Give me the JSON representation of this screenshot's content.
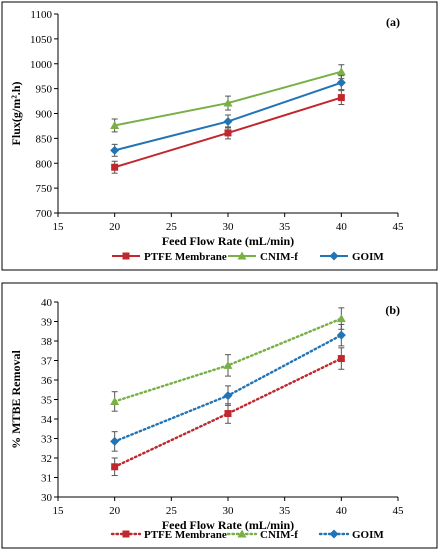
{
  "chart_data": [
    {
      "panel_label": "(a)",
      "type": "line",
      "xlabel": "Feed Flow Rate (mL/min)",
      "ylabel": "Flux(g/m².h)",
      "xlim": [
        15,
        45
      ],
      "ylim": [
        700,
        1100
      ],
      "x_ticks": [
        "15",
        "20",
        "25",
        "30",
        "35",
        "40",
        "45"
      ],
      "y_ticks": [
        "700",
        "750",
        "800",
        "850",
        "900",
        "950",
        "1000",
        "1050",
        "1100"
      ],
      "legend_position": "bottom",
      "grid": false,
      "x": [
        20,
        30,
        40
      ],
      "series": [
        {
          "name": "PTFE Membrane",
          "values": [
            792,
            861,
            932
          ],
          "errors": [
            12,
            12,
            14
          ],
          "color": "#c0282d",
          "marker": "square",
          "line": "solid"
        },
        {
          "name": "CNIM-f",
          "values": [
            876,
            921,
            984
          ],
          "errors": [
            13,
            14,
            14
          ],
          "color": "#78b045",
          "marker": "triangle",
          "line": "solid"
        },
        {
          "name": "GOIM",
          "values": [
            826,
            884,
            962
          ],
          "errors": [
            12,
            13,
            14
          ],
          "color": "#2374b5",
          "marker": "diamond",
          "line": "solid"
        }
      ]
    },
    {
      "panel_label": "(b)",
      "type": "line",
      "xlabel": "Feed Flow Rate (mL/min)",
      "ylabel": "% MTBE Removal",
      "xlim": [
        15,
        45
      ],
      "ylim": [
        30,
        40
      ],
      "x_ticks": [
        "15",
        "20",
        "25",
        "30",
        "35",
        "40",
        "45"
      ],
      "y_ticks": [
        "30",
        "31",
        "32",
        "33",
        "34",
        "35",
        "36",
        "37",
        "38",
        "39",
        "40"
      ],
      "legend_position": "bottom",
      "grid": false,
      "x": [
        20,
        30,
        40
      ],
      "series": [
        {
          "name": "PTFE Membrane",
          "values": [
            31.55,
            34.28,
            37.1
          ],
          "errors": [
            0.45,
            0.5,
            0.55
          ],
          "color": "#c0282d",
          "marker": "square",
          "line": "dotted"
        },
        {
          "name": "CNIM-f",
          "values": [
            34.9,
            36.75,
            39.15
          ],
          "errors": [
            0.5,
            0.55,
            0.55
          ],
          "color": "#78b045",
          "marker": "triangle",
          "line": "dotted"
        },
        {
          "name": "GOIM",
          "values": [
            32.85,
            35.2,
            38.3
          ],
          "errors": [
            0.5,
            0.5,
            0.55
          ],
          "color": "#2374b5",
          "marker": "diamond",
          "line": "dotted"
        }
      ]
    }
  ]
}
